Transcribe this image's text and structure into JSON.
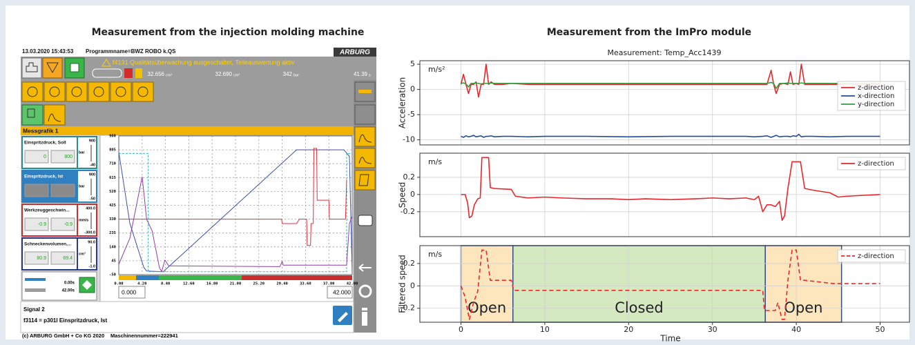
{
  "hmi": {
    "title": "Measurement from the injection molding machine",
    "timestamp": "13.03.2020 15:43:53",
    "program": "Programmname=BWZ ROBO k.QS",
    "brand": "ARBURG",
    "alert": "f4131 Qualitätsüberwachung ausgeschaltet, Teileauswertung aktiv",
    "status": [
      {
        "value": "32.656",
        "unit": "cm³"
      },
      {
        "value": "32.690",
        "unit": "cm³"
      },
      {
        "value": "342",
        "unit": "bar"
      },
      {
        "value": "41.39",
        "unit": "s"
      }
    ],
    "graph_title": "Messgrafik 1",
    "signals": [
      {
        "name": "Einspritzdruck, Soll",
        "unit": "bar",
        "max": "900",
        "min": "-40",
        "values": [
          "0",
          "800"
        ],
        "color": "#2a8c8c"
      },
      {
        "name": "Einspritzdruck, Ist",
        "unit": "bar",
        "max": "900",
        "min": "-50",
        "color": "#2f7fc1"
      },
      {
        "name": "Werkzeuggeschwin...",
        "unit": "mm/s",
        "max": "400.0",
        "min": "-300.0",
        "values": [
          "-0.9",
          "-0.9"
        ],
        "color": "#c8302f"
      },
      {
        "name": "Schneckenvolumen,...",
        "unit": "cm³",
        "max": "90.0",
        "min": "-1.0",
        "values": [
          "80.9",
          "69.4"
        ],
        "color": "#283a8c"
      }
    ],
    "time_range": [
      "0.00s",
      "42.00s"
    ],
    "range_fields": [
      "0.000",
      "42.000"
    ],
    "signal_label": "Signal 2",
    "signal_desc": "f3114 = p301I Einspritzdruck, Ist",
    "copyright": "(c) ARBURG GmbH + Co KG 2020",
    "machine": "Maschinennummer=222941"
  },
  "impro": {
    "title": "Measurement from the ImPro module",
    "subtitle": "Measurement: Temp_Acc1439"
  },
  "chart_data": [
    {
      "type": "line",
      "grid": true,
      "xlim": [
        0,
        42
      ],
      "ylim": [
        -50,
        900
      ],
      "xticks": [
        {
          "value": 0,
          "label": "0.00"
        },
        {
          "value": 4.2,
          "label": "4.20"
        },
        {
          "value": 8.4,
          "label": "8.40"
        },
        {
          "value": 12.6,
          "label": "12.60"
        },
        {
          "value": 16.8,
          "label": "16.80"
        },
        {
          "value": 21,
          "label": "21.00"
        },
        {
          "value": 25.2,
          "label": "25.20"
        },
        {
          "value": 29.4,
          "label": "29.40"
        },
        {
          "value": 33.6,
          "label": "33.60"
        },
        {
          "value": 37.8,
          "label": "37.80"
        },
        {
          "value": 42,
          "label": "42.00"
        }
      ],
      "yticks": [
        900,
        805,
        710,
        615,
        520,
        425,
        330,
        235,
        140,
        45,
        -50
      ],
      "series": [
        {
          "color": "#3b4fb0",
          "x": [
            0,
            2,
            4.5,
            5,
            8,
            32,
            40.5,
            41.5,
            42
          ],
          "values": [
            790,
            300,
            0,
            -25,
            -30,
            805,
            805,
            760,
            -40
          ]
        },
        {
          "color": "#29b6c8",
          "linestyle": "dashed",
          "x": [
            0,
            5.3,
            5.3,
            41,
            41,
            42
          ],
          "values": [
            780,
            780,
            -30,
            -30,
            780,
            780
          ]
        },
        {
          "color": "#8e3fa8",
          "x": [
            0,
            2,
            4.2,
            4.6,
            5,
            6,
            7.3,
            7.7,
            8.3,
            9,
            29,
            29.4,
            29.6,
            41,
            41.5,
            42
          ],
          "values": [
            20,
            200,
            620,
            480,
            330,
            250,
            0,
            -30,
            50,
            10,
            5,
            40,
            15,
            15,
            300,
            350
          ]
        },
        {
          "color": "#e0303a",
          "x": [
            0,
            29.3,
            29.4,
            32,
            32.5,
            33.8,
            33.9,
            34.5,
            34.6,
            35,
            35.1,
            35.6,
            35.7,
            37.8,
            37.9,
            40.8,
            41
          ],
          "values": [
            330,
            330,
            300,
            300,
            330,
            330,
            150,
            150,
            300,
            300,
            815,
            815,
            460,
            460,
            330,
            330,
            600
          ]
        }
      ]
    },
    {
      "type": "line",
      "ylabel": "Acceleration",
      "unit": "m/s²",
      "grid": true,
      "legend": "center right",
      "xlim": [
        -4.9,
        53.5
      ],
      "xticks": [
        0,
        10,
        20,
        30,
        40,
        50
      ],
      "ylim": [
        -11,
        5.7
      ],
      "yticks": [
        5,
        0,
        -5,
        -10
      ],
      "x": [
        0,
        0.3,
        0.6,
        0.9,
        1.2,
        1.5,
        1.8,
        2.1,
        2.4,
        2.7,
        3.0,
        3.3,
        3.6,
        4,
        5,
        6,
        8,
        10,
        15,
        20,
        25,
        30,
        34,
        35,
        36,
        36.5,
        37,
        37.3,
        37.6,
        38,
        38.5,
        39,
        39.3,
        39.6,
        40,
        40.3,
        40.6,
        41,
        42,
        44,
        46,
        48,
        50
      ],
      "series": [
        {
          "name": "z-direction",
          "color": "#e8262b",
          "values": [
            1,
            3,
            1,
            -0.8,
            1,
            1,
            1.5,
            -1.5,
            1,
            1,
            5,
            1,
            1.5,
            1,
            1,
            1.2,
            1,
            1,
            1,
            1,
            1,
            1,
            1,
            1,
            1,
            1,
            3.8,
            1,
            -0.8,
            1,
            1.2,
            1,
            3.5,
            1,
            1.2,
            1,
            5,
            1,
            1,
            1,
            1,
            1,
            1
          ]
        },
        {
          "name": "x-direction",
          "color": "#1f4e9c",
          "values": [
            -9.3,
            -9.5,
            -9.2,
            -9.4,
            -9.3,
            -9.1,
            -9.4,
            -9.3,
            -9.2,
            -9.5,
            -9.3,
            -9.3,
            -9.2,
            -9.4,
            -9.3,
            -9.3,
            -9.4,
            -9.3,
            -9.3,
            -9.4,
            -9.3,
            -9.3,
            -9.3,
            -9.4,
            -9.3,
            -9.2,
            -9.5,
            -9.3,
            -9.1,
            -9.4,
            -9.3,
            -9.3,
            -9.4,
            -9.2,
            -9.3,
            -8.9,
            -9.4,
            -9.3,
            -9.3,
            -9.4,
            -9.3,
            -9.3,
            -9.3
          ]
        },
        {
          "name": "y-direction",
          "color": "#2e9e3e",
          "values": [
            1.2,
            1.3,
            1.1,
            0.5,
            1.2,
            1.2,
            1.3,
            1.2,
            1.1,
            1.2,
            1.2,
            1.2,
            1.3,
            1.2,
            1.2,
            1.2,
            1.2,
            1.2,
            1.2,
            1.2,
            1.2,
            1.2,
            1.2,
            1.2,
            1.2,
            1.2,
            1.4,
            1.2,
            0.2,
            1.2,
            1.2,
            1.3,
            1.2,
            1.2,
            1.2,
            1.2,
            1.3,
            1.2,
            1.2,
            1.2,
            1.2,
            1.2,
            1.2
          ]
        }
      ]
    },
    {
      "type": "line",
      "ylabel": "Speed",
      "unit": "m/s",
      "grid": true,
      "legend": "upper right",
      "xlim": [
        -4.9,
        53.5
      ],
      "xticks": [
        0,
        10,
        20,
        30,
        40,
        50
      ],
      "ylim": [
        -0.49,
        0.48
      ],
      "yticks": [
        0.2,
        0,
        -0.2
      ],
      "x": [
        0,
        0.5,
        0.8,
        1.0,
        1.3,
        1.6,
        2.0,
        2.3,
        2.5,
        3.3,
        3.5,
        4,
        6,
        6.5,
        8,
        10,
        12,
        15,
        18,
        20,
        22,
        25,
        28,
        30,
        32,
        34,
        35,
        35.5,
        36,
        36.5,
        37,
        37.5,
        38,
        38.3,
        38.6,
        39,
        39.5,
        40.5,
        41,
        42,
        44,
        45,
        46,
        48,
        50
      ],
      "series": [
        {
          "name": "z-direction",
          "color": "#e8262b",
          "values": [
            0,
            0,
            -0.1,
            -0.27,
            -0.25,
            -0.12,
            -0.05,
            -0.04,
            0.43,
            0.43,
            0.08,
            0.07,
            0.06,
            -0.02,
            -0.04,
            -0.03,
            -0.04,
            -0.05,
            -0.05,
            -0.06,
            -0.05,
            -0.06,
            -0.05,
            -0.04,
            -0.05,
            -0.04,
            -0.06,
            -0.02,
            -0.2,
            -0.12,
            -0.12,
            -0.14,
            -0.08,
            -0.3,
            -0.25,
            0.07,
            0.38,
            0.38,
            0.07,
            0.05,
            0.02,
            -0.03,
            -0.02,
            -0.01,
            0
          ]
        }
      ]
    },
    {
      "type": "line",
      "ylabel": "Filtered speed",
      "unit": "m/s",
      "xlabel": "Time",
      "grid": true,
      "legend": "upper right",
      "xlim": [
        -4.9,
        53.5
      ],
      "xticks": [
        0,
        10,
        20,
        30,
        40,
        50
      ],
      "ylim": [
        -0.325,
        0.36
      ],
      "yticks": [
        0.2,
        0,
        -0.2
      ],
      "regions": [
        {
          "label": "Open",
          "from": 0,
          "to": 6.2,
          "color": "#fde6bd"
        },
        {
          "label": "Closed",
          "from": 6.2,
          "to": 36.3,
          "color": "#d5e9c0"
        },
        {
          "label": "Open",
          "from": 36.3,
          "to": 45.4,
          "color": "#fde6bd"
        }
      ],
      "x": [
        0,
        0.5,
        1,
        1.5,
        2,
        2.5,
        3,
        3.5,
        4,
        6,
        6.3,
        10,
        20,
        30,
        36,
        36.2,
        37.5,
        37.8,
        38.3,
        38.6,
        39,
        39.5,
        40,
        40.5,
        41,
        44.5,
        45,
        50
      ],
      "series": [
        {
          "name": "z-direction",
          "color": "#e8262b",
          "linestyle": "dashed",
          "values": [
            0,
            -0.1,
            -0.3,
            -0.15,
            -0.05,
            0.32,
            0.32,
            0.05,
            0.05,
            0.05,
            -0.04,
            -0.04,
            -0.04,
            -0.04,
            -0.04,
            -0.22,
            -0.22,
            -0.15,
            -0.3,
            -0.3,
            0.05,
            0.32,
            0.32,
            0.05,
            0.05,
            0.02,
            0.02,
            0.02
          ]
        }
      ]
    }
  ]
}
